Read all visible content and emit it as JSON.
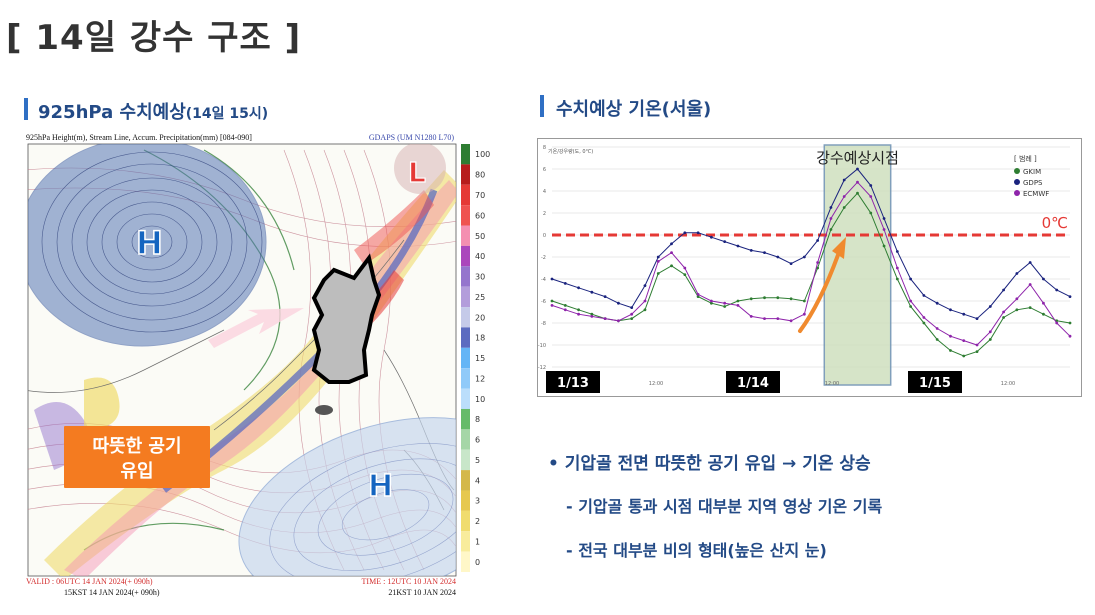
{
  "page": {
    "title": "[ 14일 강수 구조 ]"
  },
  "map_section": {
    "title": "925hPa 수치예상",
    "subtitle": "(14일 15시)",
    "map": {
      "header_left": "925hPa Height(m), Stream Line, Accum. Precipitation(mm) [084-090]",
      "header_right": "GDAPS (UM N1280 L70)",
      "footer_left_1": "VALID : 06UTC 14 JAN 2024(+ 090h)",
      "footer_left_2": "15KST 14 JAN 2024(+ 090h)",
      "footer_right_1": "TIME : 12UTC 10 JAN 2024",
      "footer_right_2": "21KST 10 JAN 2024",
      "high_label": "H",
      "low_label": "L",
      "warm_air_line1": "따뜻한 공기",
      "warm_air_line2": "유입",
      "colorbar_labels": [
        "100",
        "80",
        "70",
        "60",
        "50",
        "40",
        "30",
        "25",
        "20",
        "18",
        "15",
        "12",
        "10",
        "8",
        "6",
        "5",
        "4",
        "3",
        "2",
        "1",
        "0"
      ],
      "colorbar_colors": [
        "#2e7d32",
        "#b71c1c",
        "#e53935",
        "#ef5350",
        "#f48fb1",
        "#ab47bc",
        "#9575cd",
        "#b39ddb",
        "#c5cae9",
        "#5c6bc0",
        "#64b5f6",
        "#90caf9",
        "#bbdefb",
        "#66bb6a",
        "#a5d6a7",
        "#c8e6c9",
        "#d4b84a",
        "#e6c84f",
        "#f0dc6e",
        "#f8ec9c",
        "#fff7c8"
      ]
    }
  },
  "chart_section": {
    "title": "수치예상 기온(서울)",
    "chart_data": {
      "type": "line",
      "title": "강수예상시점",
      "ylabel": "기온/강우량(도, 0℃)",
      "ylim": [
        -12,
        8
      ],
      "reference_line": {
        "value": 0,
        "label": "0℃",
        "color": "#e53935"
      },
      "legend_title": "[ 범례 ]",
      "legend_position": "top-right",
      "date_labels": [
        "1/13",
        "1/14",
        "1/15"
      ],
      "hour_labels": [
        "12:00",
        "12:00",
        "12:00"
      ],
      "series": [
        {
          "name": "GKIM",
          "color": "#2e7d32",
          "values": [
            -6.0,
            -6.4,
            -6.8,
            -7.2,
            -7.6,
            -7.8,
            -7.6,
            -6.8,
            -3.5,
            -2.8,
            -3.6,
            -5.6,
            -6.2,
            -6.5,
            -6.0,
            -5.8,
            -5.7,
            -5.7,
            -5.8,
            -6.0,
            -3.0,
            0.5,
            2.5,
            3.8,
            2.0,
            -1.0,
            -4.0,
            -6.5,
            -8.0,
            -9.5,
            -10.5,
            -11.0,
            -10.6,
            -9.5,
            -7.5,
            -6.8,
            -6.6,
            -7.2,
            -7.8,
            -8.0
          ]
        },
        {
          "name": "GDPS",
          "color": "#1a237e",
          "values": [
            -4.0,
            -4.4,
            -4.8,
            -5.2,
            -5.6,
            -6.2,
            -6.6,
            -4.6,
            -2.0,
            -0.8,
            0.2,
            0.2,
            -0.2,
            -0.6,
            -1.0,
            -1.4,
            -1.6,
            -2.0,
            -2.6,
            -2.0,
            -0.5,
            2.5,
            5.0,
            6.0,
            4.5,
            1.5,
            -1.5,
            -4.0,
            -5.5,
            -6.2,
            -6.8,
            -7.2,
            -7.6,
            -6.5,
            -5.0,
            -3.5,
            -2.5,
            -4.0,
            -5.0,
            -5.6
          ]
        },
        {
          "name": "ECMWF",
          "color": "#8e24aa",
          "values": [
            -6.4,
            -6.8,
            -7.2,
            -7.4,
            -7.6,
            -7.8,
            -7.2,
            -6.0,
            -2.4,
            -1.6,
            -3.0,
            -5.4,
            -6.0,
            -6.2,
            -6.4,
            -7.4,
            -7.6,
            -7.6,
            -7.8,
            -7.2,
            -2.5,
            1.5,
            3.5,
            4.8,
            3.5,
            0.5,
            -3.0,
            -6.0,
            -7.5,
            -8.5,
            -9.2,
            -9.6,
            -10.0,
            -8.8,
            -7.0,
            -5.8,
            -4.5,
            -6.2,
            -8.0,
            -9.2
          ]
        }
      ]
    }
  },
  "bullets": {
    "main": "• 기압골 전면 따뜻한 공기 유입 → 기온 상승",
    "sub1": "- 기압골 통과 시점 대부분 지역 영상 기온 기록",
    "sub2": "- 전국 대부분 비의 형태(높은 산지 눈)"
  }
}
